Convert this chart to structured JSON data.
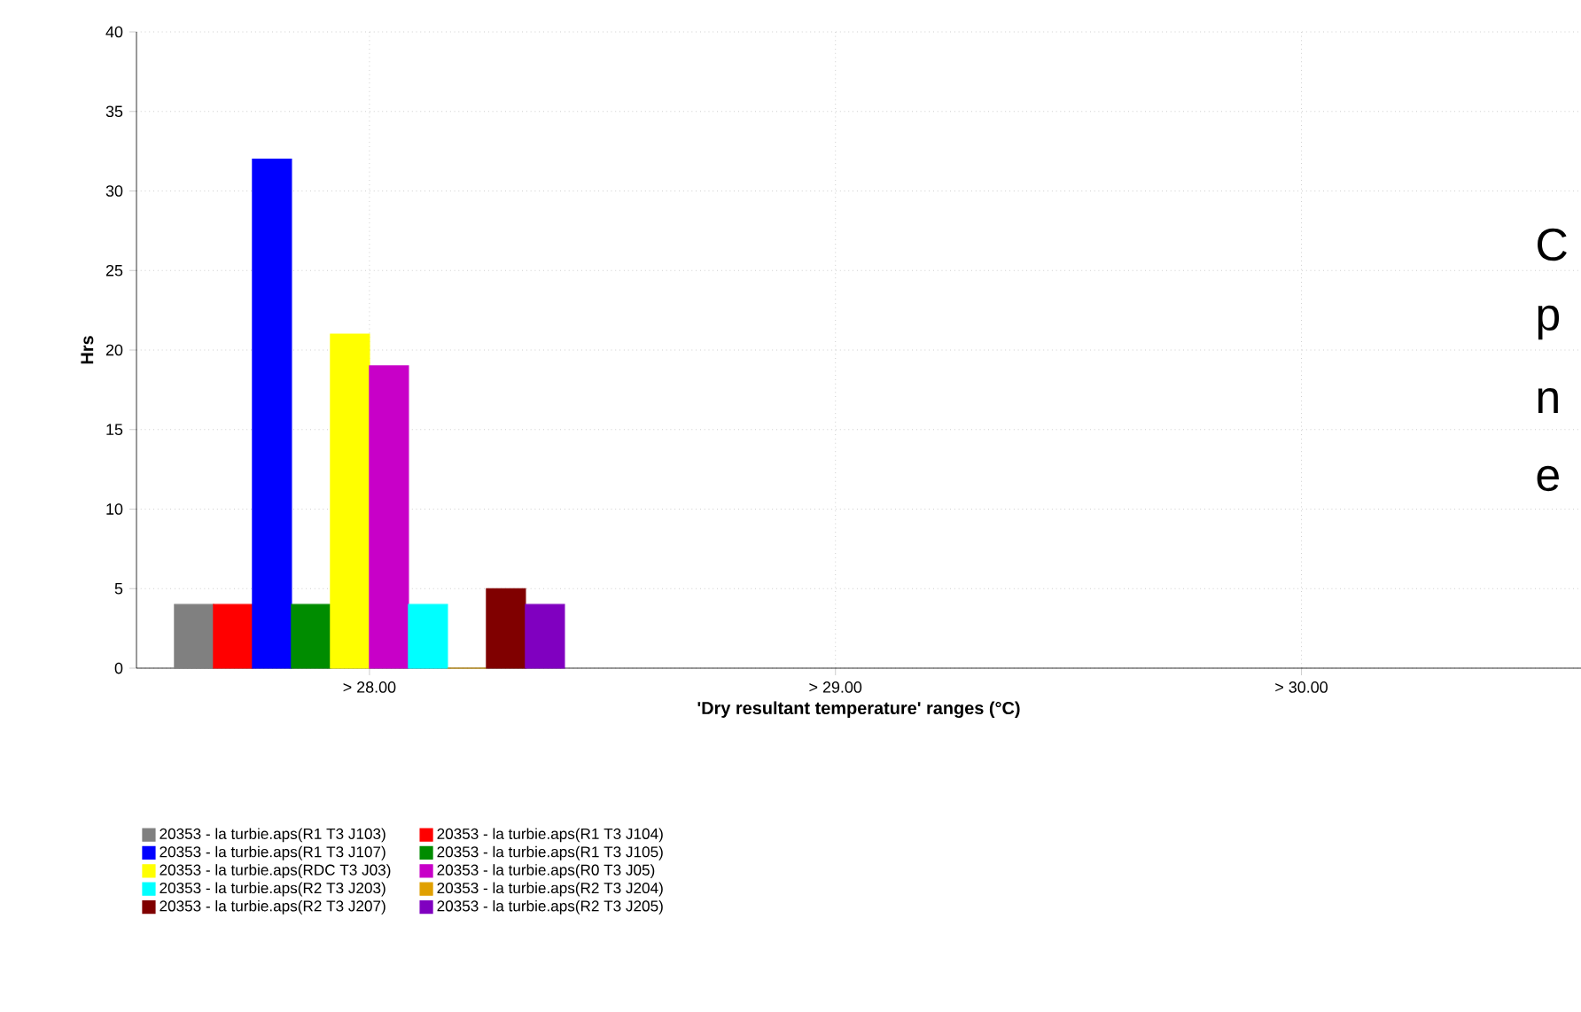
{
  "chart_data": {
    "type": "bar",
    "xlabel": "'Dry resultant temperature' ranges (°C)",
    "ylabel": "Hrs",
    "categories": [
      "> 28.00",
      "> 29.00",
      "> 30.00"
    ],
    "ylim": [
      0,
      40
    ],
    "yticks": [
      0,
      5,
      10,
      15,
      20,
      25,
      30,
      35,
      40
    ],
    "grid": true,
    "legend": "bottom",
    "series": [
      {
        "name": "20353 - la turbie.aps(R1 T3 J103)",
        "color": "#808080",
        "values": [
          4,
          null,
          null
        ]
      },
      {
        "name": "20353 - la turbie.aps(R1 T3 J104)",
        "color": "#ff0000",
        "values": [
          4,
          null,
          null
        ]
      },
      {
        "name": "20353 - la turbie.aps(R1 T3 J107)",
        "color": "#0000ff",
        "values": [
          32,
          null,
          null
        ]
      },
      {
        "name": "20353 - la turbie.aps(R1 T3 J105)",
        "color": "#008c00",
        "values": [
          4,
          null,
          null
        ]
      },
      {
        "name": "20353 - la turbie.aps(RDC T3 J03)",
        "color": "#ffff00",
        "values": [
          21,
          null,
          null
        ]
      },
      {
        "name": "20353 - la turbie.aps(R0 T3 J05)",
        "color": "#c800c8",
        "values": [
          19,
          null,
          null
        ]
      },
      {
        "name": "20353 - la turbie.aps(R2 T3 J203)",
        "color": "#00ffff",
        "values": [
          4,
          null,
          null
        ]
      },
      {
        "name": "20353 - la turbie.aps(R2 T3 J204)",
        "color": "#e0a000",
        "values": [
          0,
          null,
          null
        ]
      },
      {
        "name": "20353 - la turbie.aps(R2 T3 J207)",
        "color": "#800000",
        "values": [
          5,
          null,
          null
        ]
      },
      {
        "name": "20353 - la turbie.aps(R2 T3 J205)",
        "color": "#8000c0",
        "values": [
          4,
          null,
          null
        ]
      }
    ],
    "annotations": [
      "C",
      "p",
      "n",
      "e"
    ]
  }
}
